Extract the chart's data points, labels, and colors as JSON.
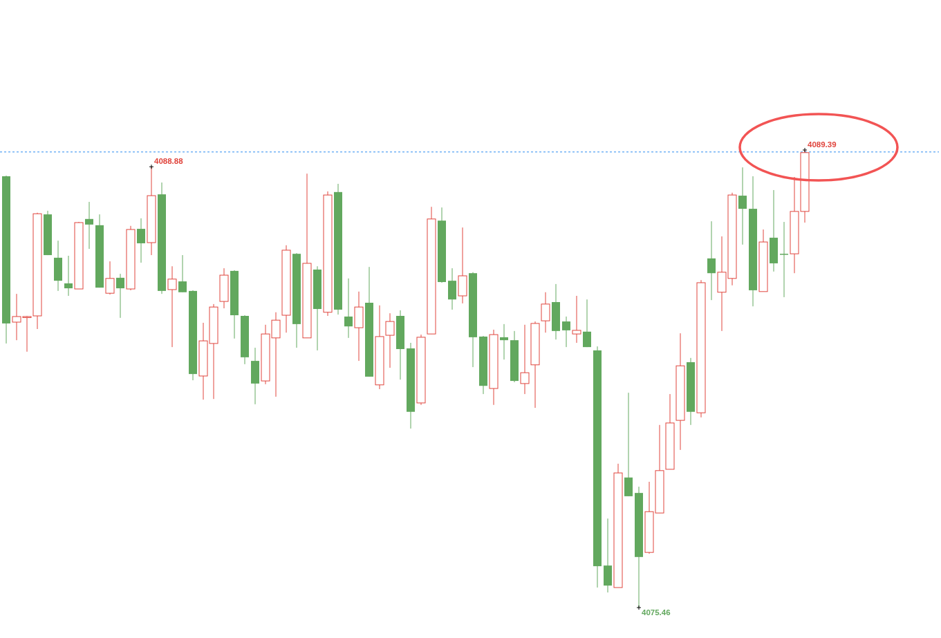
{
  "chart_data": {
    "type": "candlestick",
    "categories": [
      null,
      null,
      null,
      null,
      null,
      null,
      null,
      null,
      null,
      null,
      null,
      null,
      null,
      null,
      null,
      null,
      null,
      null,
      null,
      null,
      null,
      null,
      null,
      null,
      null,
      null,
      null,
      null,
      null,
      null,
      null,
      null,
      null,
      null,
      null,
      null,
      null,
      null,
      null,
      null,
      null,
      null,
      null,
      null,
      null,
      null,
      null,
      null,
      null,
      null,
      null,
      null,
      null,
      null,
      null,
      null,
      null,
      null,
      null,
      null,
      null,
      null,
      null,
      null,
      null,
      null,
      null,
      null,
      null,
      null,
      null,
      null,
      null,
      null,
      null,
      null,
      null,
      null
    ],
    "ohlc": [
      [
        4088.59,
        4088.61,
        4083.5,
        4084.11
      ],
      [
        4084.15,
        4085.01,
        4083.6,
        4084.32
      ],
      [
        4084.3,
        4084.34,
        4083.25,
        4084.32
      ],
      [
        4084.34,
        4087.48,
        4083.94,
        4087.45
      ],
      [
        4087.43,
        4087.54,
        4086.19,
        4086.19
      ],
      [
        4086.11,
        4086.63,
        4085.1,
        4085.41
      ],
      [
        4085.33,
        4086.17,
        4084.95,
        4085.18
      ],
      [
        4085.16,
        4087.2,
        4085.16,
        4087.18
      ],
      [
        4087.29,
        4087.81,
        4086.38,
        4087.12
      ],
      [
        4087.1,
        4087.43,
        4085.2,
        4085.2
      ],
      [
        4085.03,
        4086.0,
        4084.99,
        4085.48
      ],
      [
        4085.5,
        4085.62,
        4084.28,
        4085.18
      ],
      [
        4085.16,
        4087.08,
        4085.12,
        4086.97
      ],
      [
        4086.99,
        4087.31,
        4085.96,
        4086.55
      ],
      [
        4086.57,
        4088.88,
        4086.19,
        4088.0
      ],
      [
        4088.04,
        4088.4,
        4085.01,
        4085.1
      ],
      [
        4085.14,
        4085.85,
        4083.39,
        4085.46
      ],
      [
        4085.39,
        4086.19,
        4085.06,
        4085.06
      ],
      [
        4085.1,
        4085.12,
        4082.38,
        4082.57
      ],
      [
        4082.51,
        4084.13,
        4081.79,
        4083.58
      ],
      [
        4083.5,
        4084.7,
        4081.81,
        4084.61
      ],
      [
        4084.78,
        4085.79,
        4084.57,
        4085.58
      ],
      [
        4085.71,
        4085.73,
        4083.65,
        4084.36
      ],
      [
        4084.34,
        4084.36,
        4082.87,
        4083.08
      ],
      [
        4082.97,
        4083.37,
        4081.65,
        4082.28
      ],
      [
        4082.36,
        4084.07,
        4082.26,
        4083.79
      ],
      [
        4083.67,
        4084.45,
        4081.88,
        4084.21
      ],
      [
        4084.36,
        4086.49,
        4083.83,
        4086.34
      ],
      [
        4086.23,
        4086.25,
        4083.37,
        4084.09
      ],
      [
        4083.67,
        4088.67,
        4083.67,
        4085.94
      ],
      [
        4085.75,
        4085.85,
        4083.29,
        4084.55
      ],
      [
        4084.45,
        4088.13,
        4084.34,
        4088.02
      ],
      [
        4088.11,
        4088.36,
        4084.38,
        4084.53
      ],
      [
        4084.32,
        4085.48,
        4083.67,
        4084.02
      ],
      [
        4083.98,
        4085.08,
        4082.97,
        4084.61
      ],
      [
        4084.74,
        4085.83,
        4082.49,
        4082.49
      ],
      [
        4082.24,
        4084.66,
        4082.11,
        4083.71
      ],
      [
        4083.75,
        4084.42,
        4082.76,
        4084.17
      ],
      [
        4084.34,
        4084.51,
        4082.4,
        4083.33
      ],
      [
        4083.35,
        4083.52,
        4080.91,
        4081.42
      ],
      [
        4081.69,
        4083.77,
        4081.63,
        4083.69
      ],
      [
        4083.79,
        4087.66,
        4083.79,
        4087.29
      ],
      [
        4087.24,
        4087.64,
        4085.35,
        4085.37
      ],
      [
        4085.41,
        4085.79,
        4084.53,
        4084.84
      ],
      [
        4084.95,
        4087.03,
        4084.72,
        4085.56
      ],
      [
        4085.64,
        4085.67,
        4082.78,
        4083.69
      ],
      [
        4083.71,
        4083.73,
        4081.96,
        4082.21
      ],
      [
        4082.13,
        4083.92,
        4081.63,
        4083.77
      ],
      [
        4083.69,
        4084.09,
        4083.01,
        4083.6
      ],
      [
        4083.6,
        4083.88,
        4082.32,
        4082.36
      ],
      [
        4082.28,
        4084.07,
        4081.96,
        4082.61
      ],
      [
        4082.85,
        4084.17,
        4081.54,
        4084.11
      ],
      [
        4084.19,
        4085.06,
        4083.83,
        4084.7
      ],
      [
        4084.76,
        4085.31,
        4083.62,
        4083.88
      ],
      [
        4084.17,
        4084.32,
        4083.39,
        4083.9
      ],
      [
        4083.79,
        4084.95,
        4083.52,
        4083.9
      ],
      [
        4083.86,
        4084.84,
        4083.39,
        4083.39
      ],
      [
        4083.29,
        4083.41,
        4076.07,
        4076.72
      ],
      [
        4076.74,
        4078.17,
        4075.92,
        4076.13
      ],
      [
        4076.07,
        4079.84,
        4076.07,
        4079.56
      ],
      [
        4079.42,
        4082.0,
        4078.85,
        4078.85
      ],
      [
        4078.95,
        4079.14,
        4075.46,
        4077.0
      ],
      [
        4077.14,
        4079.29,
        4077.1,
        4078.38
      ],
      [
        4078.34,
        4081.02,
        4078.34,
        4079.63
      ],
      [
        4079.67,
        4081.96,
        4079.67,
        4081.08
      ],
      [
        4081.16,
        4083.81,
        4080.26,
        4082.82
      ],
      [
        4082.93,
        4083.06,
        4081.02,
        4081.42
      ],
      [
        4081.39,
        4085.43,
        4081.25,
        4085.35
      ],
      [
        4086.09,
        4087.22,
        4084.82,
        4085.64
      ],
      [
        4085.06,
        4086.76,
        4083.88,
        4085.67
      ],
      [
        4085.48,
        4088.09,
        4085.27,
        4088.02
      ],
      [
        4088.0,
        4088.86,
        4086.51,
        4087.6
      ],
      [
        4087.6,
        4088.59,
        4084.63,
        4085.12
      ],
      [
        4085.08,
        4086.97,
        4085.08,
        4086.59
      ],
      [
        4086.72,
        4088.17,
        4085.69,
        4085.94
      ],
      [
        4086.23,
        4087.2,
        4084.91,
        4086.21
      ],
      [
        4086.23,
        4088.57,
        4085.64,
        4087.52
      ],
      [
        4087.52,
        4089.39,
        4087.18,
        4089.31
      ]
    ],
    "colors": [
      "#62a85e",
      "#e0453d",
      "#e0453d",
      "#e0453d",
      "#62a85e",
      "#62a85e",
      "#62a85e",
      "#e0453d",
      "#62a85e",
      "#62a85e",
      "#e0453d",
      "#62a85e",
      "#e0453d",
      "#62a85e",
      "#e0453d",
      "#62a85e",
      "#e0453d",
      "#62a85e",
      "#62a85e",
      "#e0453d",
      "#e0453d",
      "#e0453d",
      "#62a85e",
      "#62a85e",
      "#62a85e",
      "#e0453d",
      "#e0453d",
      "#e0453d",
      "#62a85e",
      "#e0453d",
      "#62a85e",
      "#e0453d",
      "#62a85e",
      "#62a85e",
      "#e0453d",
      "#62a85e",
      "#e0453d",
      "#e0453d",
      "#62a85e",
      "#62a85e",
      "#e0453d",
      "#e0453d",
      "#62a85e",
      "#62a85e",
      "#e0453d",
      "#62a85e",
      "#62a85e",
      "#e0453d",
      "#62a85e",
      "#62a85e",
      "#e0453d",
      "#e0453d",
      "#e0453d",
      "#62a85e",
      "#62a85e",
      "#e0453d",
      "#62a85e",
      "#62a85e",
      "#62a85e",
      "#e0453d",
      "#62a85e",
      "#62a85e",
      "#e0453d",
      "#e0453d",
      "#e0453d",
      "#e0453d",
      "#62a85e",
      "#e0453d",
      "#62a85e",
      "#e0453d",
      "#e0453d",
      "#62a85e",
      "#62a85e",
      "#e0453d",
      "#62a85e",
      "#62a85e",
      "#e0453d",
      "#e0453d"
    ],
    "ref_lines": [
      {
        "axis": "y",
        "value": 4089.33,
        "color": "#2a8cf0",
        "line_style": "dashed"
      }
    ],
    "annotations": [
      "4088.88",
      "4089.39",
      "4075.46"
    ]
  }
}
